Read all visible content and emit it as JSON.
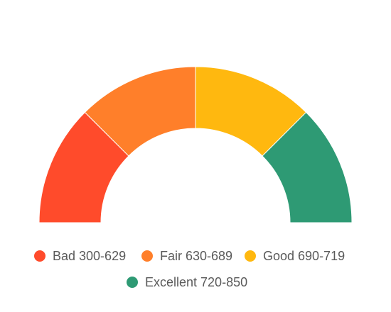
{
  "chart_data": {
    "type": "pie",
    "subtype": "semi-donut-gauge",
    "title": "",
    "categories": [
      "Bad 300-629",
      "Fair 630-689",
      "Good 690-719",
      "Excellent 720-850"
    ],
    "values": [
      1,
      1,
      1,
      1
    ],
    "colors": [
      "#ff4b2b",
      "#ff7f2a",
      "#ffb80f",
      "#2e9a74"
    ],
    "legend_position": "bottom"
  }
}
